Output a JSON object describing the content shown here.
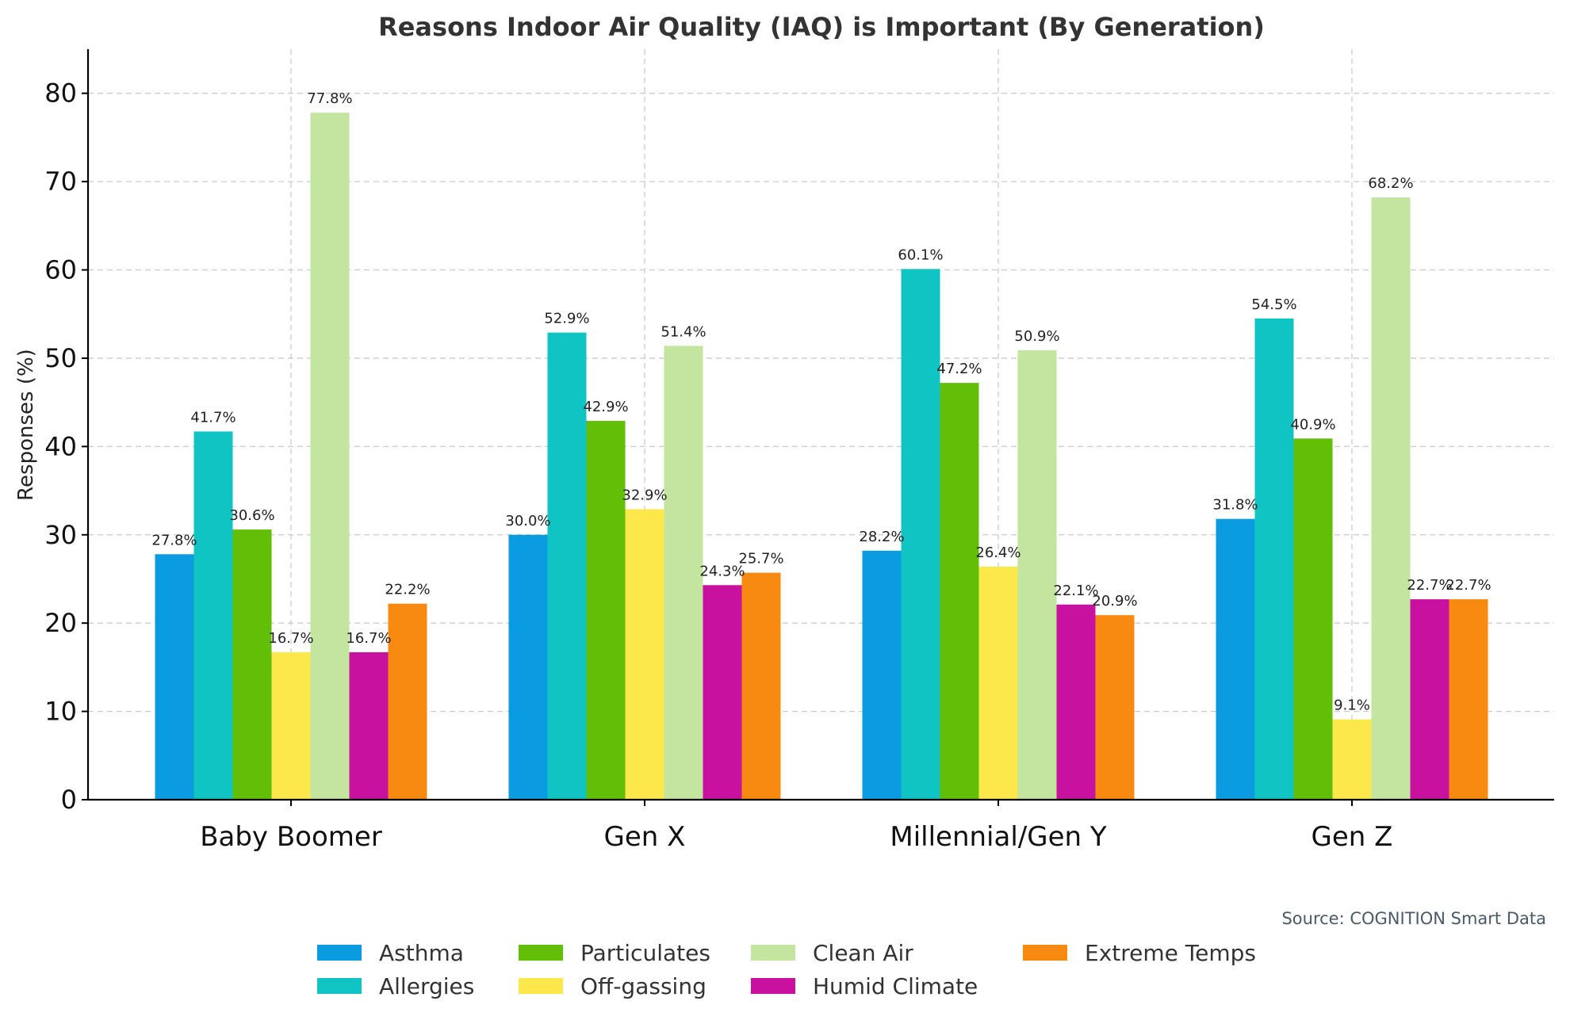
{
  "chart_data": {
    "type": "bar",
    "title": "Reasons Indoor Air Quality (IAQ) is Important (By Generation)",
    "xlabel": "",
    "ylabel": "Responses (%)",
    "ylim": [
      0,
      85
    ],
    "yticks": [
      0,
      10,
      20,
      30,
      40,
      50,
      60,
      70,
      80
    ],
    "grid": true,
    "legend_position": "bottom-center",
    "categories": [
      "Baby Boomer",
      "Gen X",
      "Millennial/Gen Y",
      "Gen Z"
    ],
    "series": [
      {
        "name": "Asthma",
        "color": "#0a9be0",
        "values": [
          27.8,
          30.0,
          28.2,
          31.8
        ],
        "labels": [
          "27.8%",
          "30.0%",
          "28.2%",
          "31.8%"
        ]
      },
      {
        "name": "Allergies",
        "color": "#10c4c4",
        "values": [
          41.7,
          52.9,
          60.1,
          54.5
        ],
        "labels": [
          "41.7%",
          "52.9%",
          "60.1%",
          "54.5%"
        ]
      },
      {
        "name": "Particulates",
        "color": "#62be06",
        "values": [
          30.6,
          42.9,
          47.2,
          40.9
        ],
        "labels": [
          "30.6%",
          "42.9%",
          "47.2%",
          "40.9%"
        ]
      },
      {
        "name": "Off-gassing",
        "color": "#fde84c",
        "values": [
          16.7,
          32.9,
          26.4,
          9.1
        ],
        "labels": [
          "16.7%",
          "32.9%",
          "26.4%",
          "9.1%"
        ]
      },
      {
        "name": "Clean Air",
        "color": "#c3e59f",
        "values": [
          77.8,
          51.4,
          50.9,
          68.2
        ],
        "labels": [
          "77.8%",
          "51.4%",
          "50.9%",
          "68.2%"
        ]
      },
      {
        "name": "Humid Climate",
        "color": "#c8129f",
        "values": [
          16.7,
          24.3,
          22.1,
          22.7
        ],
        "labels": [
          "16.7%",
          "24.3%",
          "22.1%",
          "22.7%"
        ]
      },
      {
        "name": "Extreme Temps",
        "color": "#f88a12",
        "values": [
          22.2,
          25.7,
          20.9,
          22.7
        ],
        "labels": [
          "22.2%",
          "25.7%",
          "20.9%",
          "22.7%"
        ]
      }
    ],
    "source": "Source: COGNITION Smart Data"
  }
}
